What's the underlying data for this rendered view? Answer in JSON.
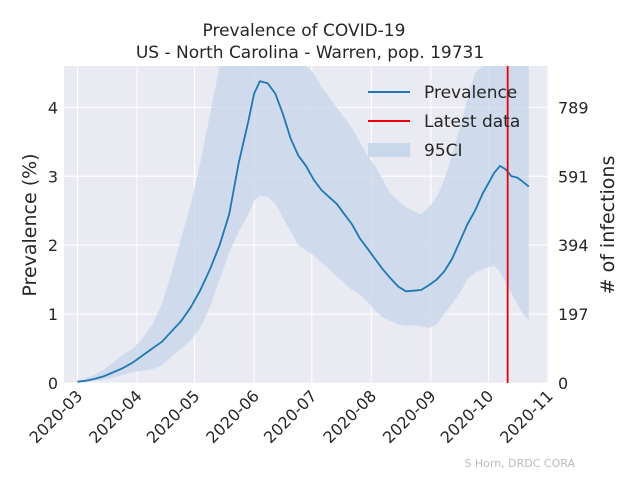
{
  "chart_data": {
    "type": "line",
    "title": "Prevalence of COVID-19",
    "subtitle": "US - North Carolina - Warren, pop. 19731",
    "ylabel": "Prevalence (%)",
    "ylabel_right": "# of infections",
    "x_ticks": [
      "2020-03",
      "2020-04",
      "2020-05",
      "2020-06",
      "2020-07",
      "2020-08",
      "2020-09",
      "2020-10",
      "2020-11"
    ],
    "x_range": [
      "2020-02-23",
      "2020-11-01"
    ],
    "ylim": [
      0,
      4.6
    ],
    "y_ticks": [
      0,
      1,
      2,
      3,
      4
    ],
    "y2_ticks": [
      "0",
      "197",
      "394",
      "591",
      "789"
    ],
    "y2_tick_positions_pct": [
      0,
      1,
      2,
      3,
      4
    ],
    "grid": true,
    "legend_position": "top-right",
    "colors": {
      "prevalence": "#1f77b4",
      "latest": "#e8000b",
      "ci": "#c5d5ea",
      "background": "#eaeaf2"
    },
    "credit": "S Horn, DRDC CORA",
    "latest_date": "2020-10-11",
    "series": [
      {
        "name": "Prevalence",
        "x": [
          "2020-03-01",
          "2020-03-05",
          "2020-03-10",
          "2020-03-15",
          "2020-03-20",
          "2020-03-25",
          "2020-03-30",
          "2020-04-04",
          "2020-04-09",
          "2020-04-14",
          "2020-04-19",
          "2020-04-24",
          "2020-04-29",
          "2020-05-04",
          "2020-05-09",
          "2020-05-14",
          "2020-05-19",
          "2020-05-24",
          "2020-05-29",
          "2020-06-01",
          "2020-06-04",
          "2020-06-08",
          "2020-06-12",
          "2020-06-16",
          "2020-06-20",
          "2020-06-24",
          "2020-06-28",
          "2020-07-02",
          "2020-07-06",
          "2020-07-10",
          "2020-07-14",
          "2020-07-18",
          "2020-07-22",
          "2020-07-26",
          "2020-07-30",
          "2020-08-03",
          "2020-08-07",
          "2020-08-11",
          "2020-08-15",
          "2020-08-19",
          "2020-08-23",
          "2020-08-27",
          "2020-08-31",
          "2020-09-04",
          "2020-09-08",
          "2020-09-12",
          "2020-09-16",
          "2020-09-20",
          "2020-09-24",
          "2020-09-28",
          "2020-10-01",
          "2020-10-04",
          "2020-10-07",
          "2020-10-10",
          "2020-10-13",
          "2020-10-16",
          "2020-10-19",
          "2020-10-22"
        ],
        "values": [
          0.02,
          0.03,
          0.06,
          0.1,
          0.16,
          0.22,
          0.3,
          0.4,
          0.5,
          0.6,
          0.75,
          0.9,
          1.1,
          1.35,
          1.65,
          2.0,
          2.45,
          3.2,
          3.8,
          4.2,
          4.38,
          4.35,
          4.2,
          3.9,
          3.55,
          3.3,
          3.15,
          2.95,
          2.8,
          2.7,
          2.6,
          2.45,
          2.3,
          2.1,
          1.95,
          1.8,
          1.65,
          1.52,
          1.4,
          1.33,
          1.34,
          1.35,
          1.42,
          1.5,
          1.62,
          1.8,
          2.05,
          2.3,
          2.5,
          2.75,
          2.9,
          3.05,
          3.15,
          3.1,
          3.0,
          2.98,
          2.92,
          2.85
        ]
      },
      {
        "name": "95CI",
        "x": [
          "2020-03-01",
          "2020-03-05",
          "2020-03-10",
          "2020-03-15",
          "2020-03-20",
          "2020-03-25",
          "2020-03-30",
          "2020-04-04",
          "2020-04-09",
          "2020-04-14",
          "2020-04-19",
          "2020-04-24",
          "2020-04-29",
          "2020-05-04",
          "2020-05-09",
          "2020-05-14",
          "2020-05-19",
          "2020-05-24",
          "2020-05-29",
          "2020-06-01",
          "2020-06-04",
          "2020-06-08",
          "2020-06-12",
          "2020-06-16",
          "2020-06-20",
          "2020-06-24",
          "2020-06-28",
          "2020-07-02",
          "2020-07-06",
          "2020-07-10",
          "2020-07-14",
          "2020-07-18",
          "2020-07-22",
          "2020-07-26",
          "2020-07-30",
          "2020-08-03",
          "2020-08-07",
          "2020-08-11",
          "2020-08-15",
          "2020-08-19",
          "2020-08-23",
          "2020-08-27",
          "2020-08-31",
          "2020-09-04",
          "2020-09-08",
          "2020-09-12",
          "2020-09-16",
          "2020-09-20",
          "2020-09-24",
          "2020-09-28",
          "2020-10-01",
          "2020-10-04",
          "2020-10-07",
          "2020-10-10",
          "2020-10-13",
          "2020-10-16",
          "2020-10-19",
          "2020-10-22"
        ],
        "lower": [
          0.0,
          0.01,
          0.03,
          0.05,
          0.08,
          0.12,
          0.16,
          0.18,
          0.2,
          0.26,
          0.38,
          0.5,
          0.62,
          0.8,
          1.1,
          1.5,
          1.9,
          2.2,
          2.45,
          2.65,
          2.72,
          2.7,
          2.6,
          2.4,
          2.2,
          2.0,
          1.92,
          1.85,
          1.75,
          1.65,
          1.55,
          1.45,
          1.35,
          1.28,
          1.18,
          1.05,
          0.95,
          0.9,
          0.85,
          0.83,
          0.84,
          0.82,
          0.8,
          0.85,
          1.0,
          1.15,
          1.3,
          1.5,
          1.6,
          1.65,
          1.68,
          1.7,
          1.62,
          1.45,
          1.3,
          1.15,
          1.0,
          0.9
        ],
        "upper": [
          0.03,
          0.06,
          0.12,
          0.2,
          0.3,
          0.42,
          0.5,
          0.65,
          0.85,
          1.15,
          1.6,
          2.1,
          2.6,
          3.2,
          3.9,
          4.6,
          4.6,
          4.6,
          4.6,
          4.6,
          4.6,
          4.6,
          4.6,
          4.6,
          4.6,
          4.6,
          4.6,
          4.5,
          4.3,
          4.15,
          4.0,
          3.85,
          3.7,
          3.5,
          3.3,
          3.15,
          2.95,
          2.75,
          2.65,
          2.55,
          2.5,
          2.45,
          2.55,
          2.7,
          2.95,
          3.3,
          3.7,
          4.1,
          4.5,
          4.6,
          4.6,
          4.6,
          4.6,
          4.6,
          4.6,
          4.6,
          4.6,
          4.6
        ]
      }
    ],
    "legend": {
      "prevalence": "Prevalence",
      "latest": "Latest data",
      "ci": "95CI"
    }
  }
}
